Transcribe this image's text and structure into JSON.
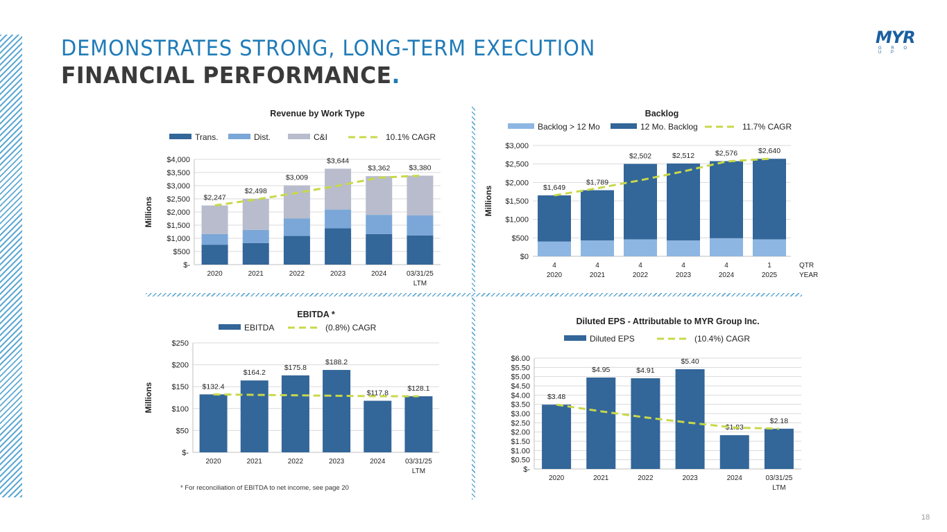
{
  "header": {
    "title_line1": "DEMONSTRATES STRONG, LONG-TERM EXECUTION",
    "title_line2": "FINANCIAL PERFORMANCE",
    "title_dot": ".",
    "logo_mark": "MYR",
    "logo_sub": "G R O U P"
  },
  "footnote": "* For reconciliation of EBITDA to net income, see page 20",
  "page_number": "18",
  "colors": {
    "trans": "#336699",
    "dist": "#7aa7d8",
    "ci": "#b8bccc",
    "backlog_gt12": "#8db6e2",
    "backlog_12": "#336699",
    "cagr": "#c8d84a",
    "grid": "#d9d9d9",
    "title_blue": "#1f7bb8"
  },
  "chart_data": [
    {
      "id": "revenue",
      "type": "bar",
      "stacked": true,
      "title": "Revenue by Work Type",
      "ylabel": "Millions",
      "categories": [
        "2020",
        "2021",
        "2022",
        "2023",
        "2024",
        "03/31/25"
      ],
      "category_sublabels": [
        "",
        "",
        "",
        "",
        "",
        "LTM"
      ],
      "series": [
        {
          "name": "Trans.",
          "values": [
            750,
            820,
            1090,
            1380,
            1160,
            1110
          ]
        },
        {
          "name": "Dist.",
          "values": [
            410,
            500,
            660,
            710,
            730,
            760
          ]
        },
        {
          "name": "C&I",
          "values": [
            1087,
            1178,
            1259,
            1554,
            1472,
            1510
          ]
        }
      ],
      "totals": [
        "$2,247",
        "$2,498",
        "$3,009",
        "$3,644",
        "$3,362",
        "$3,380"
      ],
      "cagr_label": "10.1% CAGR",
      "trend": [
        2247,
        2474,
        2724,
        2999,
        3302,
        3380
      ],
      "ylim": [
        0,
        4000
      ],
      "yticks": [
        0,
        500,
        1000,
        1500,
        2000,
        2500,
        3000,
        3500,
        4000
      ],
      "ytick_labels": [
        "$-",
        "$500",
        "$1,000",
        "$1,500",
        "$2,000",
        "$2,500",
        "$3,000",
        "$3,500",
        "$4,000"
      ]
    },
    {
      "id": "backlog",
      "type": "bar",
      "stacked": true,
      "title": "Backlog",
      "ylabel": "Millions",
      "categories": [
        "4",
        "4",
        "4",
        "4",
        "4",
        "1"
      ],
      "category_sublabels": [
        "2020",
        "2021",
        "2022",
        "2023",
        "2024",
        "2025"
      ],
      "axis_row_labels": [
        "QTR",
        "YEAR"
      ],
      "series": [
        {
          "name": "Backlog > 12 Mo",
          "values": [
            400,
            430,
            460,
            430,
            490,
            460
          ]
        },
        {
          "name": "12 Mo. Backlog",
          "values": [
            1249,
            1359,
            2042,
            2082,
            2086,
            2180
          ]
        }
      ],
      "totals": [
        "$1,649",
        "$1,789",
        "$2,502",
        "$2,512",
        "$2,576",
        "$2,640"
      ],
      "cagr_label": "11.7% CAGR",
      "trend": [
        1649,
        1842,
        2058,
        2298,
        2567,
        2640
      ],
      "ylim": [
        0,
        3000
      ],
      "yticks": [
        0,
        500,
        1000,
        1500,
        2000,
        2500,
        3000
      ],
      "ytick_labels": [
        "$0",
        "$500",
        "$1,000",
        "$1,500",
        "$2,000",
        "$2,500",
        "$3,000"
      ]
    },
    {
      "id": "ebitda",
      "type": "bar",
      "title": "EBITDA *",
      "ylabel": "Millions",
      "categories": [
        "2020",
        "2021",
        "2022",
        "2023",
        "2024",
        "03/31/25"
      ],
      "category_sublabels": [
        "",
        "",
        "",
        "",
        "",
        "LTM"
      ],
      "series": [
        {
          "name": "EBITDA",
          "values": [
            132.4,
            164.2,
            175.8,
            188.2,
            117.8,
            128.1
          ]
        }
      ],
      "totals": [
        "$132.4",
        "$164.2",
        "$175.8",
        "$188.2",
        "$117.8",
        "$128.1"
      ],
      "cagr_label": "(0.8%) CAGR",
      "trend": [
        132.4,
        131.3,
        130.3,
        129.2,
        128.2,
        128.1
      ],
      "ylim": [
        0,
        250
      ],
      "yticks": [
        0,
        50,
        100,
        150,
        200,
        250
      ],
      "ytick_labels": [
        "$-",
        "$50",
        "$100",
        "$150",
        "$200",
        "$250"
      ]
    },
    {
      "id": "eps",
      "type": "bar",
      "title": "Diluted EPS - Attributable to MYR Group Inc.",
      "ylabel": "",
      "categories": [
        "2020",
        "2021",
        "2022",
        "2023",
        "2024",
        "03/31/25"
      ],
      "category_sublabels": [
        "",
        "",
        "",
        "",
        "",
        "LTM"
      ],
      "series": [
        {
          "name": "Diluted EPS",
          "values": [
            3.48,
            4.95,
            4.91,
            5.4,
            1.83,
            2.18
          ]
        }
      ],
      "totals": [
        "$3.48",
        "$4.95",
        "$4.91",
        "$5.40",
        "$1.83",
        "$2.18"
      ],
      "cagr_label": "(10.4%) CAGR",
      "trend": [
        3.48,
        3.12,
        2.79,
        2.5,
        2.24,
        2.18
      ],
      "ylim": [
        0,
        6
      ],
      "yticks": [
        0,
        0.5,
        1,
        1.5,
        2,
        2.5,
        3,
        3.5,
        4,
        4.5,
        5,
        5.5,
        6
      ],
      "ytick_labels": [
        "$-",
        "$0.50",
        "$1.00",
        "$1.50",
        "$2.00",
        "$2.50",
        "$3.00",
        "$3.50",
        "$4.00",
        "$4.50",
        "$5.00",
        "$5.50",
        "$6.00"
      ]
    }
  ]
}
